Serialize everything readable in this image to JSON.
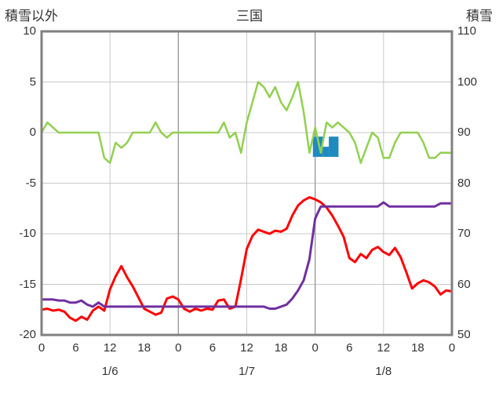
{
  "header": {
    "left_axis_title": "積雪以外",
    "chart_title": "三国",
    "right_axis_title": "積雪"
  },
  "colors": {
    "background": "#ffffff",
    "frame": "#808080",
    "grid": "#c9c9c9",
    "grid_day_boundary": "#9b9b9b",
    "text": "#333333"
  },
  "chart_data": {
    "type": "line",
    "title": "三国",
    "x": {
      "total_hours": 72,
      "tick_hours": [
        0,
        6,
        12,
        18,
        24,
        30,
        36,
        42,
        48,
        54,
        60,
        66,
        72
      ],
      "tick_labels": [
        "0",
        "6",
        "12",
        "18",
        "0",
        "6",
        "12",
        "18",
        "0",
        "6",
        "12",
        "18",
        "0"
      ],
      "day_labels": [
        {
          "label": "1/6",
          "hour": 12
        },
        {
          "label": "1/7",
          "hour": 36
        },
        {
          "label": "1/8",
          "hour": 60
        }
      ]
    },
    "left_axis": {
      "title": "積雪以外",
      "min": -20,
      "max": 10,
      "ticks": [
        10,
        5,
        0,
        -5,
        -10,
        -15,
        -20
      ]
    },
    "right_axis": {
      "title": "積雪",
      "min": 50,
      "max": 110,
      "ticks": [
        110,
        100,
        90,
        80,
        70,
        60,
        50
      ]
    },
    "grid": {
      "horizontal_left_values": [
        5,
        0,
        -5,
        -10,
        -15
      ],
      "vertical_hours": [
        12,
        36,
        60
      ],
      "day_boundary_hours": [
        24,
        48
      ]
    },
    "series": [
      {
        "name": "green-line",
        "color": "#92d050",
        "axis": "left",
        "width": 2.5,
        "values": [
          0,
          1,
          0.5,
          0,
          0,
          0,
          0,
          0,
          0,
          0,
          0,
          -2.5,
          -3,
          -1,
          -1.5,
          -1,
          0,
          0,
          0,
          0,
          1,
          0,
          -0.5,
          0,
          0,
          0,
          0,
          0,
          0,
          0,
          0,
          0,
          1,
          -0.5,
          0,
          -2,
          1,
          3,
          5,
          4.5,
          3.5,
          4.5,
          3,
          2.2,
          3.5,
          5,
          2,
          -2,
          0.5,
          -2,
          1,
          0.5,
          1,
          0.5,
          0,
          -1,
          -3,
          -1.5,
          0,
          -0.5,
          -2.5,
          -2.5,
          -1,
          0,
          0,
          0,
          0,
          -1,
          -2.5,
          -2.5,
          -2,
          -2,
          -2
        ]
      },
      {
        "name": "red-line",
        "color": "#ff0000",
        "axis": "left",
        "width": 3,
        "values": [
          -17.5,
          -17.4,
          -17.6,
          -17.5,
          -17.7,
          -18.3,
          -18.6,
          -18.2,
          -18.5,
          -17.6,
          -17.2,
          -17.6,
          -15.5,
          -14.2,
          -13.2,
          -14.3,
          -15.2,
          -16.3,
          -17.4,
          -17.7,
          -18,
          -17.8,
          -16.4,
          -16.2,
          -16.5,
          -17.4,
          -17.7,
          -17.4,
          -17.6,
          -17.4,
          -17.5,
          -16.6,
          -16.5,
          -17.4,
          -17.2,
          -14.5,
          -11.5,
          -10.2,
          -9.6,
          -9.8,
          -10,
          -9.7,
          -9.8,
          -9.5,
          -8.2,
          -7.2,
          -6.7,
          -6.4,
          -6.6,
          -6.9,
          -7.4,
          -8.2,
          -9.2,
          -10.3,
          -12.4,
          -12.8,
          -12,
          -12.4,
          -11.6,
          -11.3,
          -11.8,
          -12.1,
          -11.4,
          -12.3,
          -13.8,
          -15.4,
          -14.9,
          -14.6,
          -14.8,
          -15.2,
          -16,
          -15.6,
          -15.7
        ]
      },
      {
        "name": "purple-line",
        "color": "#7030a0",
        "axis": "left",
        "width": 3,
        "values": [
          -16.5,
          -16.5,
          -16.5,
          -16.6,
          -16.6,
          -16.8,
          -16.8,
          -16.6,
          -17,
          -17.2,
          -16.8,
          -17.2,
          -17.2,
          -17.2,
          -17.2,
          -17.2,
          -17.2,
          -17.2,
          -17.2,
          -17.2,
          -17.2,
          -17.2,
          -17.2,
          -17.2,
          -17.2,
          -17.2,
          -17.2,
          -17.2,
          -17.2,
          -17.2,
          -17.2,
          -17.2,
          -17.2,
          -17.2,
          -17.2,
          -17.2,
          -17.2,
          -17.2,
          -17.2,
          -17.2,
          -17.4,
          -17.4,
          -17.2,
          -17,
          -16.4,
          -15.6,
          -14.6,
          -12.5,
          -8.5,
          -7.3,
          -7.3,
          -7.3,
          -7.3,
          -7.3,
          -7.3,
          -7.3,
          -7.3,
          -7.3,
          -7.3,
          -7.3,
          -6.9,
          -7.3,
          -7.3,
          -7.3,
          -7.3,
          -7.3,
          -7.3,
          -7.3,
          -7.3,
          -7.3,
          -7,
          -7,
          -7
        ]
      }
    ],
    "bars": {
      "name": "blue-bars",
      "color": "#1f8ac0",
      "axis": "left",
      "segments": [
        {
          "from": 47.6,
          "to": 49.4,
          "top": -0.4,
          "bottom": -2.4
        },
        {
          "from": 49.4,
          "to": 50.4,
          "top": -1.4,
          "bottom": -2.4
        },
        {
          "from": 50.4,
          "to": 52.1,
          "top": -0.4,
          "bottom": -2.4
        }
      ]
    }
  }
}
